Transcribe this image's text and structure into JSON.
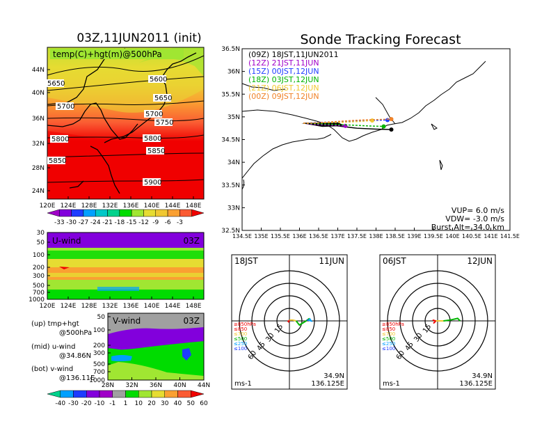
{
  "titles": {
    "left": "03Z,11JUN2011 (init)",
    "right": "Sonde Tracking Forecast"
  },
  "colors": {
    "ramp_temp": [
      "#a000c8",
      "#8200dc",
      "#1e3cff",
      "#00a0ff",
      "#00c8c8",
      "#00d28c",
      "#00dc00",
      "#a0e632",
      "#e6dc32",
      "#f0c832",
      "#faa032",
      "#fa5a32",
      "#f00000"
    ],
    "ramp_wind": [
      "#00d28c",
      "#00a0ff",
      "#1e3cff",
      "#8200dc",
      "#a000c8",
      "#a0a0a0",
      "#00dc00",
      "#a0e632",
      "#e6dc32",
      "#faa032",
      "#fa5a32",
      "#f00000"
    ],
    "launch_times": [
      "#000000",
      "#a000c8",
      "#1e3cff",
      "#00b400",
      "#f0c832",
      "#f08228"
    ],
    "hodo_layers": [
      "#f00000",
      "#f0c832",
      "#00b400",
      "#00a0ff",
      "#1e3cff"
    ]
  },
  "panel_temp": {
    "label": "temp(C)+hgt(m)@500hPa",
    "lon_ticks": [
      "120E",
      "124E",
      "128E",
      "132E",
      "136E",
      "140E",
      "144E",
      "148E"
    ],
    "lat_ticks": [
      "44N",
      "40N",
      "36N",
      "32N",
      "28N",
      "24N"
    ],
    "contours": [
      "5650",
      "5600",
      "5650",
      "5700",
      "5700",
      "5750",
      "5800",
      "5800",
      "5850",
      "5850",
      "5900"
    ],
    "colorbar_labels": [
      "-33",
      "-30",
      "-27",
      "-24",
      "-21",
      "-18",
      "-15",
      "-12",
      "-9",
      "-6",
      "-3"
    ]
  },
  "panel_u": {
    "label": "U-wind",
    "time": "03Z",
    "p_ticks": [
      "30",
      "50",
      "100",
      "200",
      "300",
      "500",
      "700",
      "1000"
    ],
    "lon_ticks": [
      "120E",
      "124E",
      "128E",
      "132E",
      "136E",
      "140E",
      "144E",
      "148E"
    ]
  },
  "panel_v": {
    "label": "V-wind",
    "time": "03Z",
    "p_ticks": [
      "50",
      "100",
      "200",
      "300",
      "500",
      "700",
      "1000"
    ],
    "lat_ticks": [
      "28N",
      "32N",
      "36N",
      "40N",
      "44N"
    ],
    "colorbar_labels": [
      "-40",
      "-30",
      "-20",
      "-10",
      "-1",
      "1",
      "10",
      "20",
      "30",
      "40",
      "50",
      "60"
    ]
  },
  "legend_text": {
    "up": "(up) tmp+hgt",
    "up2": "@500hPa",
    "mid": "(mid) u-wind",
    "mid2": "@34.86N",
    "bot": "(bot) v-wind",
    "bot2": "@136.11E"
  },
  "tracking": {
    "launches": [
      "(09Z)  18JST,11JUN2011",
      "(12Z)  21JST,11JUN",
      "(15Z)  00JST,12JUN",
      "(18Z)  03JST,12JUN",
      "(21Z)  06JST,12JUN",
      "(00Z)  09JST,12JUN"
    ],
    "lat_ticks": [
      "36.5N",
      "36N",
      "35.5N",
      "35N",
      "34.5N",
      "34N",
      "33.5N",
      "33N",
      "32.5N"
    ],
    "lon_ticks": [
      "134.5E",
      "135E",
      "135.5E",
      "136E",
      "136.5E",
      "137E",
      "137.5E",
      "138E",
      "138.5E",
      "139E",
      "139.5E",
      "140E",
      "140.5E",
      "141E",
      "141.5E"
    ],
    "info1": "VUP=  6.0  m/s",
    "info2": "VDW= -3.0  m/s",
    "info3": "Burst Alt=  34.0  km"
  },
  "hodo_left": {
    "time": "18JST",
    "date": "11JUN",
    "rings": [
      "15",
      "30",
      "45",
      "60"
    ],
    "layers": [
      "≥850hPa",
      "≤850",
      "≤700",
      "≤500",
      "≤250",
      "≤100"
    ],
    "unit": "ms-1",
    "pos1": "34.9N",
    "pos2": "136.125E"
  },
  "hodo_right": {
    "time": "06JST",
    "date": "12JUN",
    "rings": [
      "15",
      "30",
      "45",
      "60"
    ],
    "layers": [
      "≥850hPa",
      "≤850",
      "≤700",
      "≤500",
      "≤250",
      "≤100"
    ],
    "unit": "ms-1",
    "pos1": "34.9N",
    "pos2": "136.125E"
  },
  "chart_data": [
    {
      "type": "heatmap",
      "title": "temp(C)+hgt(m)@500hPa",
      "x_ticks": [
        "120E",
        "124E",
        "128E",
        "132E",
        "136E",
        "140E",
        "144E",
        "148E"
      ],
      "y_ticks": [
        "24N",
        "28N",
        "32N",
        "36N",
        "40N",
        "44N"
      ],
      "xlim": [
        120,
        150
      ],
      "ylim": [
        22,
        48
      ],
      "color_levels": [
        -33,
        -30,
        -27,
        -24,
        -21,
        -18,
        -15,
        -12,
        -9,
        -6,
        -3
      ],
      "contour_labels": [
        5600,
        5650,
        5700,
        5750,
        5800,
        5850,
        5900
      ]
    },
    {
      "type": "heatmap",
      "title": "U-wind",
      "x_ticks": [
        "120E",
        "124E",
        "128E",
        "132E",
        "136E",
        "140E",
        "144E",
        "148E"
      ],
      "y_ticks": [
        "30",
        "50",
        "100",
        "200",
        "300",
        "500",
        "700",
        "1000"
      ]
    },
    {
      "type": "heatmap",
      "title": "V-wind",
      "x_ticks": [
        "28N",
        "32N",
        "36N",
        "40N",
        "44N"
      ],
      "y_ticks": [
        "50",
        "100",
        "200",
        "300",
        "500",
        "700",
        "1000"
      ],
      "color_levels": [
        -40,
        -30,
        -20,
        -10,
        -1,
        1,
        10,
        20,
        30,
        40,
        50,
        60
      ]
    },
    {
      "type": "line",
      "title": "Sonde Tracking Forecast",
      "xlim": [
        134.5,
        141.5
      ],
      "ylim": [
        32.5,
        36.5
      ],
      "series": [
        {
          "name": "(09Z) 18JST,11JUN2011",
          "x": [
            136.1,
            136.5,
            137.0,
            137.5,
            138.0,
            138.4
          ],
          "y": [
            34.86,
            34.85,
            34.8,
            34.75,
            34.73,
            34.72
          ]
        },
        {
          "name": "(12Z) 21JST,11JUN",
          "x": [
            136.1,
            136.4,
            136.8,
            137.2
          ],
          "y": [
            34.86,
            34.83,
            34.82,
            34.8
          ]
        },
        {
          "name": "(15Z) 00JST,12JUN",
          "x": [
            136.1,
            136.6,
            137.2,
            137.8,
            138.3
          ],
          "y": [
            34.86,
            34.88,
            34.9,
            34.92,
            34.93
          ]
        },
        {
          "name": "(18Z) 03JST,12JUN",
          "x": [
            136.1,
            136.7,
            137.3,
            137.8,
            138.2
          ],
          "y": [
            34.86,
            34.84,
            34.82,
            34.8,
            34.79
          ]
        },
        {
          "name": "(21Z) 06JST,12JUN",
          "x": [
            136.1,
            136.6,
            137.1,
            137.6,
            137.9
          ],
          "y": [
            34.86,
            34.87,
            34.88,
            34.9,
            34.92
          ]
        },
        {
          "name": "(00Z) 09JST,12JUN",
          "x": [
            136.1,
            136.5,
            137.0,
            137.6,
            138.4
          ],
          "y": [
            34.86,
            34.87,
            34.9,
            34.93,
            34.95
          ]
        }
      ]
    },
    {
      "type": "line",
      "title": "18JST 11JUN",
      "series": [
        {
          "name": "≥850hPa",
          "x": [
            -2,
            -1,
            0
          ],
          "y": [
            0,
            -1,
            1
          ]
        },
        {
          "name": "≤850",
          "x": [
            0,
            4,
            8
          ],
          "y": [
            1,
            1,
            0
          ]
        },
        {
          "name": "≤700",
          "x": [
            8,
            12,
            20,
            24
          ],
          "y": [
            0,
            -5,
            0,
            3
          ]
        },
        {
          "name": "≤500",
          "x": [
            24,
            26,
            22
          ],
          "y": [
            3,
            0,
            1
          ]
        },
        {
          "name": "≤250",
          "x": [
            22,
            21
          ],
          "y": [
            1,
            1
          ]
        }
      ]
    },
    {
      "type": "line",
      "title": "06JST 12JUN",
      "series": [
        {
          "name": "≥850hPa",
          "x": [
            -6,
            -2,
            -5
          ],
          "y": [
            1,
            0,
            -3
          ]
        },
        {
          "name": "≤850",
          "x": [
            -2,
            4,
            7
          ],
          "y": [
            0,
            0,
            0
          ]
        },
        {
          "name": "≤700",
          "x": [
            7,
            15,
            24,
            27
          ],
          "y": [
            0,
            1,
            3,
            0
          ]
        },
        {
          "name": "≤500",
          "x": [
            27
          ],
          "y": [
            0
          ]
        }
      ]
    }
  ]
}
